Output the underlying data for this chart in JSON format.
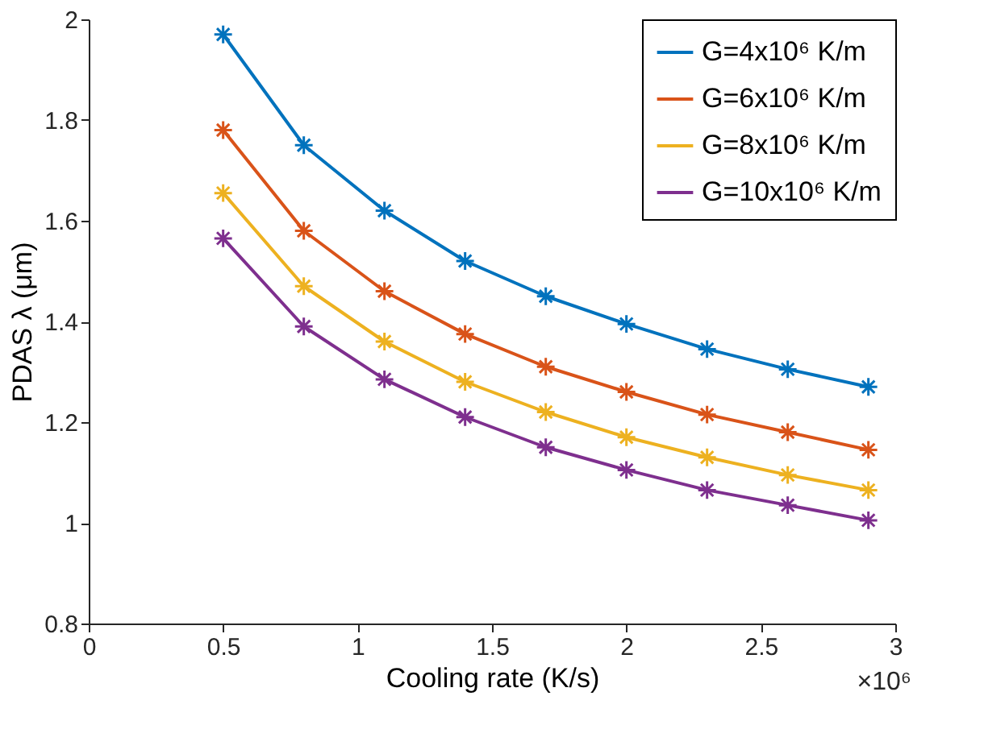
{
  "chart_data": {
    "type": "line",
    "xlabel": "Cooling rate (K/s)",
    "ylabel": "PDAS λ (μm)",
    "x": [
      0.5,
      0.8,
      1.1,
      1.4,
      1.7,
      2.0,
      2.3,
      2.6,
      2.9
    ],
    "series": [
      {
        "name": "G=4x10⁶ K/m",
        "color": "#0072bd",
        "values": [
          1.97,
          1.75,
          1.62,
          1.52,
          1.45,
          1.395,
          1.345,
          1.305,
          1.27
        ]
      },
      {
        "name": "G=6x10⁶ K/m",
        "color": "#d95319",
        "values": [
          1.78,
          1.58,
          1.46,
          1.375,
          1.31,
          1.26,
          1.215,
          1.18,
          1.145
        ]
      },
      {
        "name": "G=8x10⁶ K/m",
        "color": "#edb120",
        "values": [
          1.655,
          1.47,
          1.36,
          1.28,
          1.22,
          1.17,
          1.13,
          1.095,
          1.065
        ]
      },
      {
        "name": "G=10x10⁶ K/m",
        "color": "#7e2f8e",
        "values": [
          1.565,
          1.39,
          1.285,
          1.21,
          1.15,
          1.105,
          1.065,
          1.035,
          1.005
        ]
      }
    ],
    "xlim": [
      0,
      3
    ],
    "xticks": [
      0,
      0.5,
      1,
      1.5,
      2,
      2.5,
      3
    ],
    "ylim": [
      0.8,
      2
    ],
    "yticks": [
      0.8,
      1,
      1.2,
      1.4,
      1.6,
      1.8,
      2
    ],
    "annotations": [
      "×10⁶"
    ],
    "marker": "cross",
    "line_style": "solid",
    "grid": false,
    "legend": "top right"
  }
}
